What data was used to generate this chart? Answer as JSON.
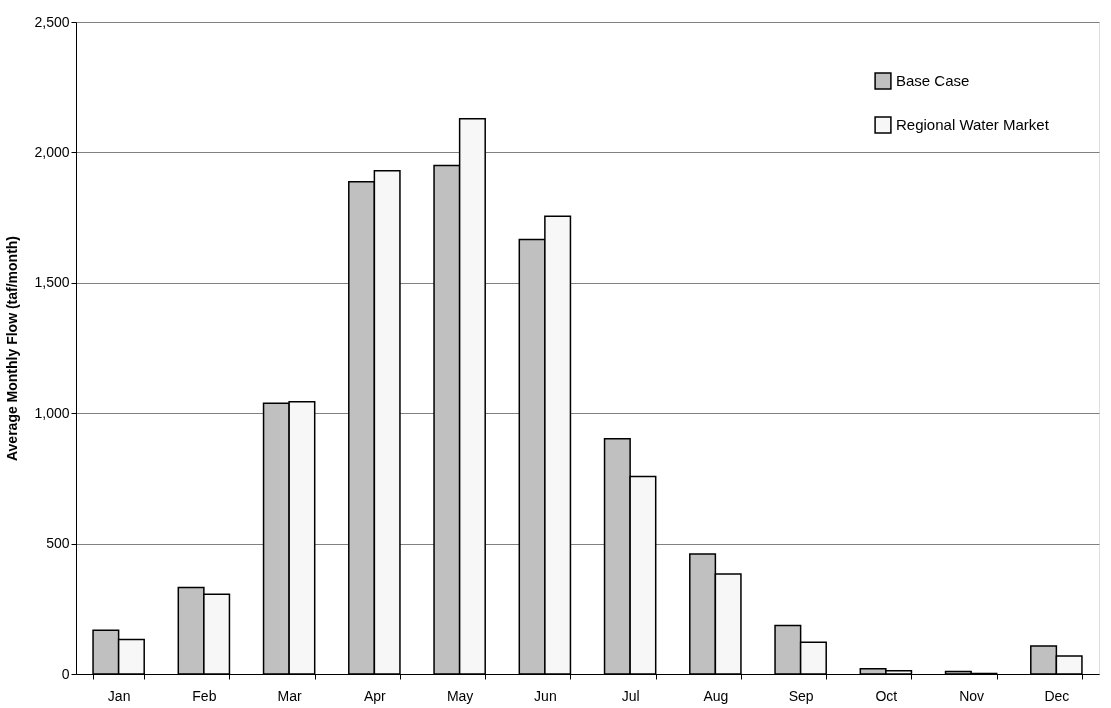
{
  "chart_data": {
    "type": "bar",
    "ylabel": "Average Monthly Flow (taf/month)",
    "categories": [
      "Jan",
      "Feb",
      "Mar",
      "Apr",
      "May",
      "Jun",
      "Jul",
      "Aug",
      "Sep",
      "Oct",
      "Nov",
      "Dec"
    ],
    "series": [
      {
        "name": "Base Case",
        "color": "#c0c0c0",
        "values": [
          168,
          332,
          1038,
          1887,
          1950,
          1666,
          902,
          460,
          186,
          20,
          10,
          107
        ]
      },
      {
        "name": "Regional Water Market",
        "color": "#f7f7f7",
        "values": [
          132,
          306,
          1044,
          1930,
          2129,
          1755,
          757,
          383,
          122,
          12,
          2,
          69
        ]
      }
    ],
    "ylim": [
      0,
      2500
    ],
    "yticks": [
      0,
      500,
      {
        "value": 1000,
        "label": "1,000"
      },
      {
        "value": 1500,
        "label": "1,500"
      },
      {
        "value": 2000,
        "label": "2,000"
      },
      {
        "value": 2500,
        "label": "2,500"
      }
    ],
    "grid": "y",
    "legend": "top right"
  }
}
